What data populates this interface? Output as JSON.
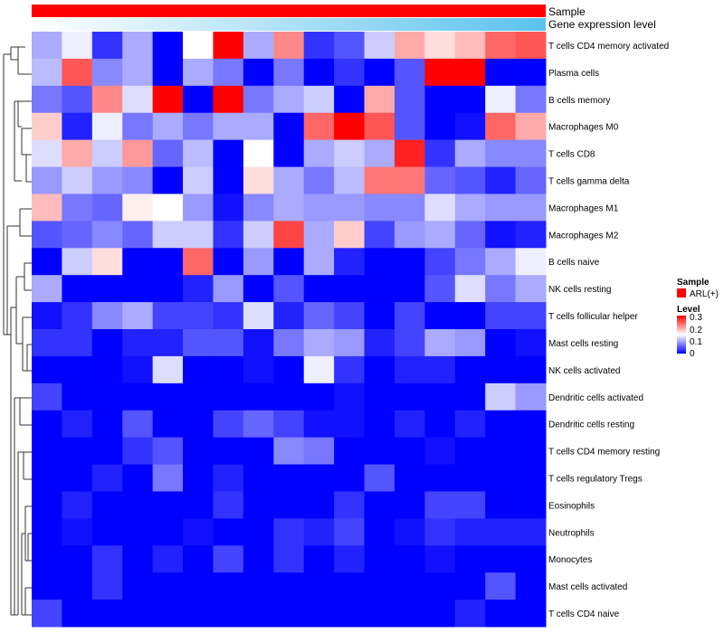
{
  "chart_data": {
    "type": "heatmap",
    "title": "",
    "annotations": {
      "top_tracks": [
        {
          "label": "Sample",
          "color": "#ff0000"
        },
        {
          "label": "Gene expression level",
          "gradient": [
            "#ffffff",
            "#5bc2ee"
          ]
        }
      ]
    },
    "legend": {
      "sample_title": "Sample",
      "sample_items": [
        {
          "label": "ARL(+)",
          "color": "#ff0000"
        }
      ],
      "level_title": "Level",
      "level_ticks": [
        "0.3",
        "0.2",
        "0.1",
        "0"
      ],
      "level_range": [
        0,
        0.3
      ],
      "placement": "right"
    },
    "colors": {
      "low": "#0000ff",
      "mid": "#ffffff",
      "high": "#ff0000"
    },
    "rows": [
      "T cells CD4 memory activated",
      "Plasma cells",
      "B cells memory",
      "Macrophages M0",
      "T cells CD8",
      "T cells gamma delta",
      "Macrophages M1",
      "Macrophages M2",
      "B cells naive",
      "NK cells resting",
      "T cells follicular helper",
      "Mast cells resting",
      "NK cells activated",
      "Dendritic cells activated",
      "Dendritic cells resting",
      "T cells CD4 memory resting",
      "T cells regulatory  Tregs",
      "Eosinophils",
      "Neutrophils",
      "Monocytes",
      "Mast cells activated",
      "T cells CD4 naive"
    ],
    "values": [
      [
        0.1,
        0.14,
        0.03,
        0.1,
        0.0,
        0.15,
        0.3,
        0.1,
        0.22,
        0.03,
        0.05,
        0.12,
        0.2,
        0.17,
        0.19,
        0.24,
        0.25
      ],
      [
        0.11,
        0.25,
        0.08,
        0.1,
        0.0,
        0.1,
        0.07,
        0.0,
        0.07,
        0.0,
        0.03,
        0.0,
        0.05,
        0.3,
        0.3,
        0.0,
        0.0
      ],
      [
        0.07,
        0.05,
        0.22,
        0.13,
        0.3,
        0.0,
        0.3,
        0.07,
        0.1,
        0.12,
        0.0,
        0.2,
        0.05,
        0.0,
        0.0,
        0.14,
        0.07
      ],
      [
        0.18,
        0.02,
        0.14,
        0.07,
        0.1,
        0.07,
        0.1,
        0.1,
        0.0,
        0.24,
        0.3,
        0.25,
        0.05,
        0.0,
        0.01,
        0.24,
        0.2
      ],
      [
        0.13,
        0.2,
        0.12,
        0.21,
        0.06,
        0.11,
        0.0,
        0.15,
        0.0,
        0.1,
        0.12,
        0.1,
        0.28,
        0.03,
        0.1,
        0.08,
        0.08
      ],
      [
        0.09,
        0.12,
        0.09,
        0.08,
        0.0,
        0.12,
        0.0,
        0.17,
        0.1,
        0.07,
        0.11,
        0.23,
        0.23,
        0.06,
        0.05,
        0.02,
        0.06
      ],
      [
        0.19,
        0.07,
        0.06,
        0.16,
        0.15,
        0.09,
        0.01,
        0.08,
        0.1,
        0.09,
        0.09,
        0.08,
        0.08,
        0.13,
        0.1,
        0.09,
        0.09
      ],
      [
        0.05,
        0.06,
        0.08,
        0.06,
        0.12,
        0.12,
        0.03,
        0.12,
        0.26,
        0.1,
        0.18,
        0.04,
        0.09,
        0.1,
        0.06,
        0.01,
        0.02
      ],
      [
        0.0,
        0.12,
        0.17,
        0.0,
        0.0,
        0.24,
        0.0,
        0.09,
        0.0,
        0.1,
        0.02,
        0.0,
        0.0,
        0.04,
        0.07,
        0.1,
        0.14
      ],
      [
        0.1,
        0.0,
        0.0,
        0.0,
        0.0,
        0.02,
        0.09,
        0.0,
        0.05,
        0.0,
        0.0,
        0.0,
        0.0,
        0.05,
        0.13,
        0.07,
        0.1
      ],
      [
        0.01,
        0.03,
        0.08,
        0.1,
        0.04,
        0.04,
        0.03,
        0.13,
        0.02,
        0.06,
        0.04,
        0.0,
        0.04,
        0.0,
        0.0,
        0.04,
        0.04
      ],
      [
        0.03,
        0.03,
        0.0,
        0.02,
        0.02,
        0.05,
        0.05,
        0.01,
        0.07,
        0.1,
        0.09,
        0.02,
        0.04,
        0.1,
        0.09,
        0.0,
        0.01
      ],
      [
        0.0,
        0.0,
        0.0,
        0.01,
        0.13,
        0.0,
        0.0,
        0.01,
        0.0,
        0.14,
        0.03,
        0.0,
        0.02,
        0.02,
        0.0,
        0.0,
        0.0
      ],
      [
        0.04,
        0.0,
        0.0,
        0.0,
        0.0,
        0.0,
        0.0,
        0.0,
        0.0,
        0.0,
        0.01,
        0.0,
        0.0,
        0.0,
        0.0,
        0.12,
        0.09
      ],
      [
        0.0,
        0.02,
        0.0,
        0.05,
        0.0,
        0.0,
        0.04,
        0.06,
        0.04,
        0.01,
        0.01,
        0.0,
        0.02,
        0.0,
        0.02,
        0.0,
        0.0
      ],
      [
        0.0,
        0.0,
        0.0,
        0.03,
        0.05,
        0.0,
        0.0,
        0.0,
        0.08,
        0.07,
        0.0,
        0.0,
        0.0,
        0.01,
        0.0,
        0.0,
        0.0
      ],
      [
        0.0,
        0.0,
        0.02,
        0.0,
        0.07,
        0.0,
        0.02,
        0.0,
        0.0,
        0.0,
        0.0,
        0.05,
        0.0,
        0.0,
        0.0,
        0.0,
        0.0
      ],
      [
        0.0,
        0.02,
        0.0,
        0.0,
        0.0,
        0.0,
        0.03,
        0.0,
        0.0,
        0.0,
        0.03,
        0.0,
        0.0,
        0.04,
        0.04,
        0.0,
        0.0
      ],
      [
        0.0,
        0.01,
        0.0,
        0.0,
        0.0,
        0.01,
        0.0,
        0.0,
        0.03,
        0.02,
        0.04,
        0.0,
        0.01,
        0.03,
        0.02,
        0.02,
        0.02
      ],
      [
        0.0,
        0.0,
        0.03,
        0.0,
        0.02,
        0.0,
        0.04,
        0.0,
        0.03,
        0.0,
        0.02,
        0.0,
        0.0,
        0.01,
        0.0,
        0.0,
        0.0
      ],
      [
        0.0,
        0.0,
        0.03,
        0.0,
        0.0,
        0.0,
        0.0,
        0.0,
        0.0,
        0.0,
        0.0,
        0.0,
        0.0,
        0.0,
        0.0,
        0.05,
        0.0
      ],
      [
        0.04,
        0.0,
        0.0,
        0.0,
        0.0,
        0.0,
        0.0,
        0.0,
        0.0,
        0.0,
        0.0,
        0.0,
        0.0,
        0.0,
        0.02,
        0.0,
        0.0
      ]
    ]
  }
}
